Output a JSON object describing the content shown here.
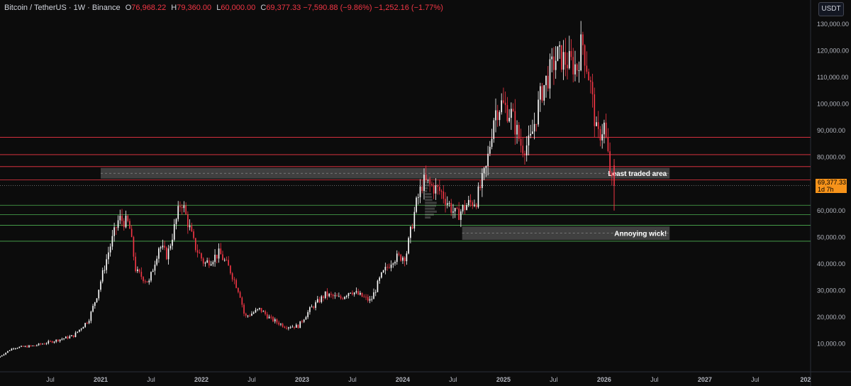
{
  "header": {
    "symbol": "Bitcoin / TetherUS · 1W · Binance",
    "open_key": "O",
    "open": "76,968.22",
    "high_key": "H",
    "high": "79,360.00",
    "low_key": "L",
    "low": "60,000.00",
    "close_key": "C",
    "close": "69,377.33",
    "change": "−7,590.88 (−9.86%)",
    "change2": "−1,252.16 (−1.77%)"
  },
  "currency_label": "USDT",
  "price_tag": {
    "price": "69,377.33",
    "countdown": "1d 7h"
  },
  "colors": {
    "up": "#ffffff",
    "down": "#f23645",
    "red_line": "#f23645",
    "green_line": "#4caf50",
    "zone": "#8a8a8a",
    "tag": "#f7931a"
  },
  "chart_data": {
    "type": "candlestick",
    "y_ticks": [
      "130,000.00",
      "120,000.00",
      "110,000.00",
      "100,000.00",
      "90,000.00",
      "80,000.00",
      "60,000.00",
      "50,000.00",
      "40,000.00",
      "30,000.00",
      "20,000.00",
      "10,000.00"
    ],
    "y_tick_values": [
      130000,
      120000,
      110000,
      100000,
      90000,
      80000,
      60000,
      50000,
      40000,
      30000,
      20000,
      10000
    ],
    "x_ticks": [
      "Jul",
      "2021",
      "Jul",
      "2022",
      "Jul",
      "2023",
      "Jul",
      "2024",
      "Jul",
      "2025",
      "Jul",
      "2026",
      "Jul",
      "2027",
      "Jul",
      "202"
    ],
    "x_tick_times": [
      2020.5,
      2021.0,
      2021.5,
      2022.0,
      2022.5,
      2023.0,
      2023.5,
      2024.0,
      2024.5,
      2025.0,
      2025.5,
      2026.0,
      2026.5,
      2027.0,
      2027.5,
      2028.0
    ],
    "x_range": [
      2020.0,
      2028.05
    ],
    "y_range": [
      0,
      135000
    ],
    "red_levels": [
      87500,
      81000,
      76500,
      71500
    ],
    "green_levels": [
      62000,
      58500,
      54500,
      48500
    ],
    "zones": [
      {
        "label": "Least traded area",
        "x0": 2021.0,
        "x1": 2026.65,
        "y0": 72000,
        "y1": 76000
      },
      {
        "label": "Annoying wick!",
        "x0": 2024.59,
        "x1": 2026.65,
        "y0": 49000,
        "y1": 54000
      }
    ],
    "anchors": [
      [
        2020.0,
        4800
      ],
      [
        2020.15,
        8500
      ],
      [
        2020.35,
        9200
      ],
      [
        2020.55,
        11000
      ],
      [
        2020.75,
        13000
      ],
      [
        2020.9,
        19000
      ],
      [
        2020.98,
        28000
      ],
      [
        2021.1,
        45000
      ],
      [
        2021.2,
        57000
      ],
      [
        2021.3,
        55000
      ],
      [
        2021.37,
        37000
      ],
      [
        2021.5,
        33000
      ],
      [
        2021.6,
        47000
      ],
      [
        2021.68,
        43000
      ],
      [
        2021.82,
        64000
      ],
      [
        2021.95,
        47000
      ],
      [
        2022.05,
        40000
      ],
      [
        2022.2,
        44000
      ],
      [
        2022.3,
        38000
      ],
      [
        2022.4,
        29000
      ],
      [
        2022.45,
        20000
      ],
      [
        2022.6,
        23000
      ],
      [
        2022.7,
        19500
      ],
      [
        2022.85,
        16500
      ],
      [
        2022.98,
        16600
      ],
      [
        2023.1,
        23000
      ],
      [
        2023.25,
        28500
      ],
      [
        2023.4,
        27000
      ],
      [
        2023.5,
        30000
      ],
      [
        2023.7,
        26000
      ],
      [
        2023.8,
        35000
      ],
      [
        2023.92,
        42000
      ],
      [
        2024.05,
        43000
      ],
      [
        2024.15,
        62000
      ],
      [
        2024.22,
        71000
      ],
      [
        2024.4,
        67000
      ],
      [
        2024.55,
        58000
      ],
      [
        2024.65,
        62000
      ],
      [
        2024.75,
        64000
      ],
      [
        2024.85,
        76000
      ],
      [
        2024.93,
        97000
      ],
      [
        2025.0,
        100000
      ],
      [
        2025.1,
        96000
      ],
      [
        2025.2,
        84000
      ],
      [
        2025.28,
        85000
      ],
      [
        2025.4,
        105000
      ],
      [
        2025.55,
        118000
      ],
      [
        2025.65,
        116000
      ],
      [
        2025.75,
        114000
      ],
      [
        2025.8,
        124000
      ],
      [
        2025.88,
        108000
      ],
      [
        2025.95,
        87000
      ],
      [
        2026.02,
        92000
      ],
      [
        2026.07,
        76500
      ],
      [
        2026.1,
        69377
      ]
    ],
    "last_candle": {
      "open": 76968.22,
      "high": 79360.0,
      "low": 60000.0,
      "close": 69377.33
    },
    "annotations": [
      "Least traded area",
      "Annoying wick!"
    ]
  }
}
